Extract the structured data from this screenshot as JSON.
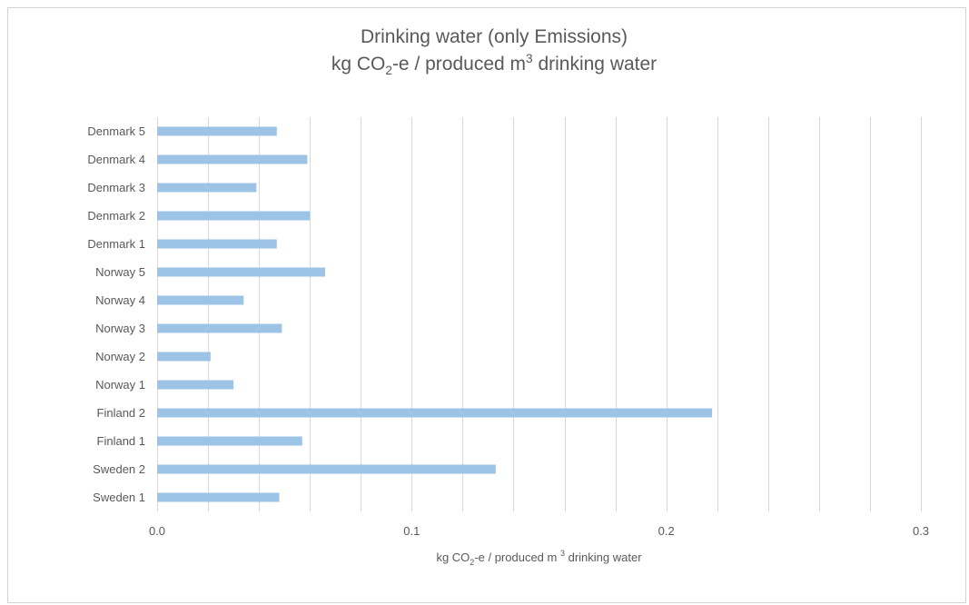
{
  "chart_data": {
    "type": "bar",
    "orientation": "horizontal",
    "title_line1": "Drinking water (only Emissions)",
    "title_line2": {
      "pre": "kg CO",
      "sub": "2",
      "mid": "-e / produced m",
      "sup": "3",
      "post": " drinking water"
    },
    "xlabel": {
      "pre": "kg CO",
      "sub": "2",
      "mid": "-e / produced m ",
      "sup": "3",
      "post": " drinking water"
    },
    "ylabel": "",
    "xlim": [
      0,
      0.3
    ],
    "x_ticks": [
      "0.0",
      "0.1",
      "0.2",
      "0.3"
    ],
    "x_tick_values": [
      0,
      0.1,
      0.2,
      0.3
    ],
    "x_minor_step": 0.02,
    "categories": [
      "Denmark 5",
      "Denmark 4",
      "Denmark 3",
      "Denmark 2",
      "Denmark 1",
      "Norway 5",
      "Norway 4",
      "Norway 3",
      "Norway 2",
      "Norway 1",
      "Finland 2",
      "Finland 1",
      "Sweden 2",
      "Sweden 1"
    ],
    "values": [
      0.047,
      0.059,
      0.039,
      0.06,
      0.047,
      0.066,
      0.034,
      0.049,
      0.021,
      0.03,
      0.218,
      0.057,
      0.133,
      0.048
    ],
    "grid": true,
    "legend": "none",
    "bar_color": "#9dc3e6",
    "gridline_color": "#d9d9d9"
  }
}
